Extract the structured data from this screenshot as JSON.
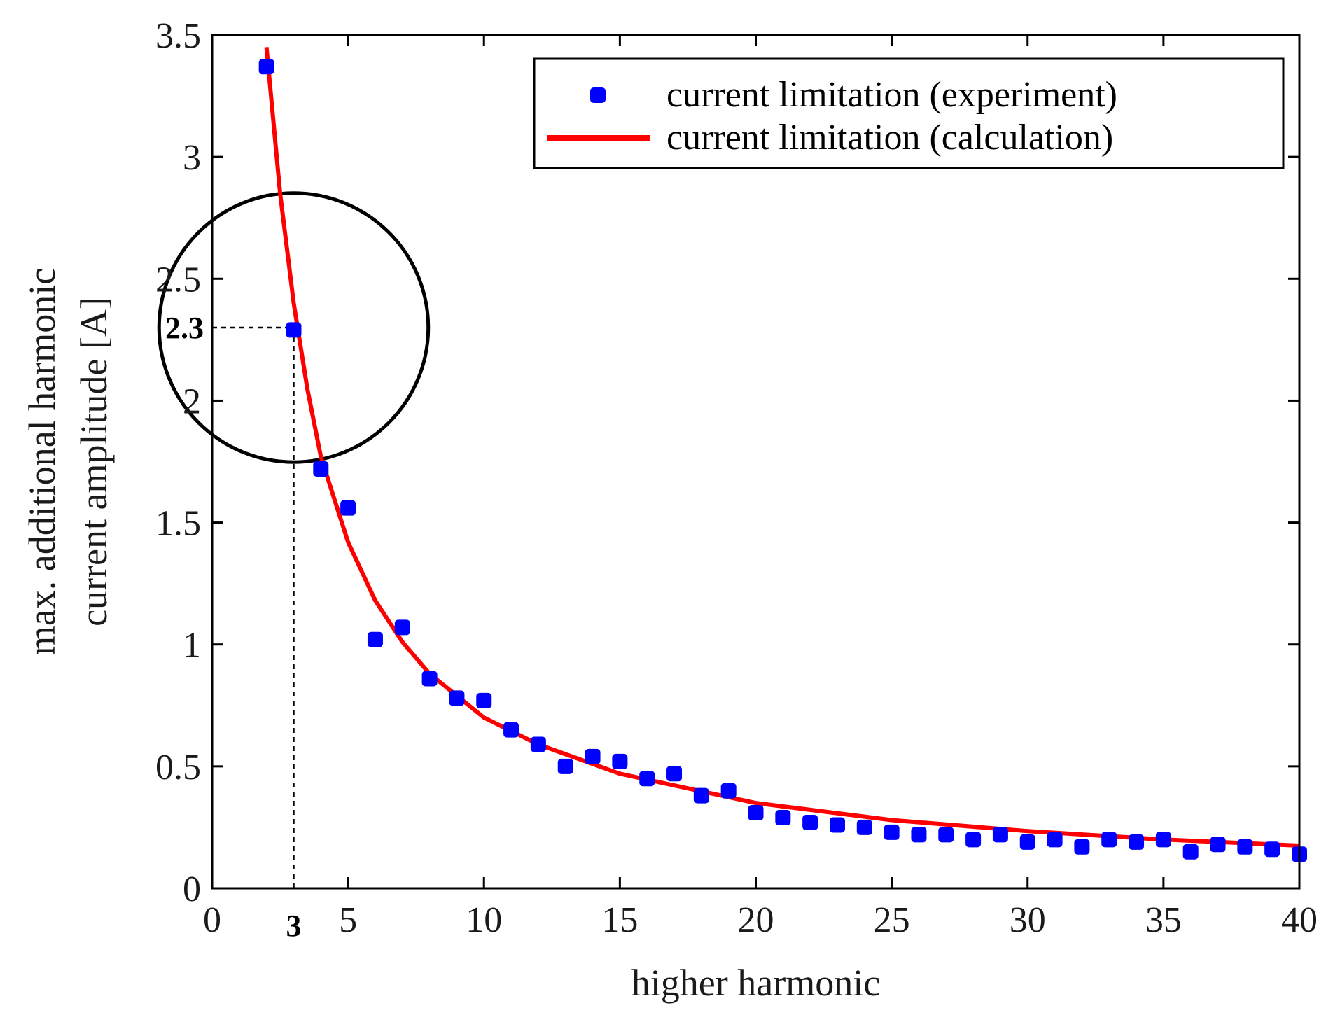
{
  "chart_data": {
    "type": "scatter",
    "title": "",
    "xlabel": "higher harmonic",
    "ylabel_lines": [
      "max. additional harmonic",
      "current amplitude [A]"
    ],
    "xlim": [
      0,
      40
    ],
    "ylim": [
      0,
      3.5
    ],
    "xticks": [
      0,
      5,
      10,
      15,
      20,
      25,
      30,
      35,
      40
    ],
    "xtick_labels": [
      "0",
      "5",
      "10",
      "15",
      "20",
      "25",
      "30",
      "35",
      "40"
    ],
    "yticks": [
      0,
      0.5,
      1,
      1.5,
      2,
      2.5,
      3,
      3.5
    ],
    "ytick_labels": [
      "0",
      "0.5",
      "1",
      "1.5",
      "2",
      "2.5",
      "3",
      "3.5"
    ],
    "legend_position": "top-right",
    "series": [
      {
        "name": "current limitation (experiment)",
        "kind": "markers",
        "color": "#0000ff",
        "x": [
          2,
          3,
          4,
          5,
          6,
          7,
          8,
          9,
          10,
          11,
          12,
          13,
          14,
          15,
          16,
          17,
          18,
          19,
          20,
          21,
          22,
          23,
          24,
          25,
          26,
          27,
          28,
          29,
          30,
          31,
          32,
          33,
          34,
          35,
          36,
          37,
          38,
          39,
          40
        ],
        "values": [
          3.37,
          2.29,
          1.72,
          1.56,
          1.02,
          1.07,
          0.86,
          0.78,
          0.77,
          0.65,
          0.59,
          0.5,
          0.54,
          0.52,
          0.45,
          0.47,
          0.38,
          0.4,
          0.31,
          0.29,
          0.27,
          0.26,
          0.25,
          0.23,
          0.22,
          0.22,
          0.2,
          0.22,
          0.19,
          0.2,
          0.17,
          0.2,
          0.19,
          0.2,
          0.15,
          0.18,
          0.17,
          0.16,
          0.14
        ]
      },
      {
        "name": "current limitation (calculation)",
        "kind": "line",
        "color": "#ff0000",
        "x": [
          2,
          2.5,
          3,
          3.5,
          4,
          5,
          6,
          7,
          8,
          10,
          12,
          15,
          20,
          25,
          30,
          35,
          40
        ],
        "values": [
          3.45,
          2.85,
          2.4,
          2.05,
          1.77,
          1.42,
          1.18,
          1.01,
          0.88,
          0.7,
          0.59,
          0.47,
          0.35,
          0.28,
          0.235,
          0.2,
          0.175
        ]
      }
    ],
    "annotation": {
      "x": 3,
      "y": 2.3,
      "x_label": "3",
      "y_label": "2.3",
      "circle_radius_units": 0.6
    }
  }
}
